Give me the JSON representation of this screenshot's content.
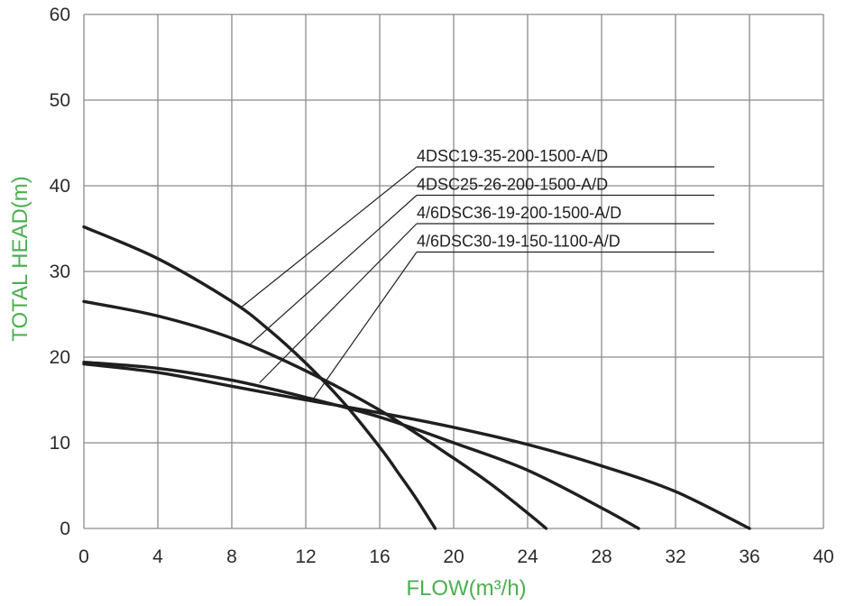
{
  "chart_data": {
    "type": "line",
    "title": "",
    "xlabel": "FLOW(m³/h)",
    "ylabel": "TOTAL HEAD(m)",
    "label_color": "#4caf50",
    "grid_color": "#8a8a8a",
    "curve_color": "#1f1f1f",
    "xlim": [
      0,
      40
    ],
    "ylim": [
      0,
      60
    ],
    "xticks": [
      "0",
      "4",
      "8",
      "12",
      "16",
      "20",
      "24",
      "28",
      "32",
      "36",
      "40"
    ],
    "yticks": [
      "0",
      "10",
      "20",
      "30",
      "40",
      "50",
      "60"
    ],
    "grid": true,
    "series": [
      {
        "name": "4DSC19-35-200-1500-A/D",
        "x": [
          0,
          4,
          8,
          10,
          12,
          14,
          16,
          17,
          18,
          19
        ],
        "y": [
          35.2,
          31.5,
          26.5,
          23.2,
          19.3,
          14.8,
          9.5,
          6.5,
          3.4,
          0
        ],
        "leader_point": [
          8.5,
          25.8
        ]
      },
      {
        "name": "4DSC25-26-200-1500-A/D",
        "x": [
          0,
          4,
          8,
          12,
          16,
          20,
          22,
          24,
          25
        ],
        "y": [
          26.5,
          24.8,
          22.2,
          18.4,
          13.8,
          8.2,
          5.2,
          1.8,
          0
        ],
        "leader_point": [
          9,
          21.5
        ]
      },
      {
        "name": "4/6DSC36-19-200-1500-A/D",
        "x": [
          0,
          4,
          8,
          12,
          16,
          20,
          24,
          28,
          30
        ],
        "y": [
          19.4,
          18.7,
          17.3,
          15.3,
          13.0,
          10.0,
          6.8,
          2.4,
          0
        ],
        "leader_point": [
          9.5,
          17
        ]
      },
      {
        "name": "4/6DSC30-19-150-1100-A/D",
        "x": [
          0,
          4,
          8,
          12,
          16,
          20,
          24,
          28,
          32,
          36
        ],
        "y": [
          19.2,
          18.2,
          16.6,
          15.0,
          13.5,
          11.8,
          9.8,
          7.3,
          4.3,
          0
        ],
        "leader_point": [
          12.3,
          14.8
        ]
      }
    ]
  }
}
